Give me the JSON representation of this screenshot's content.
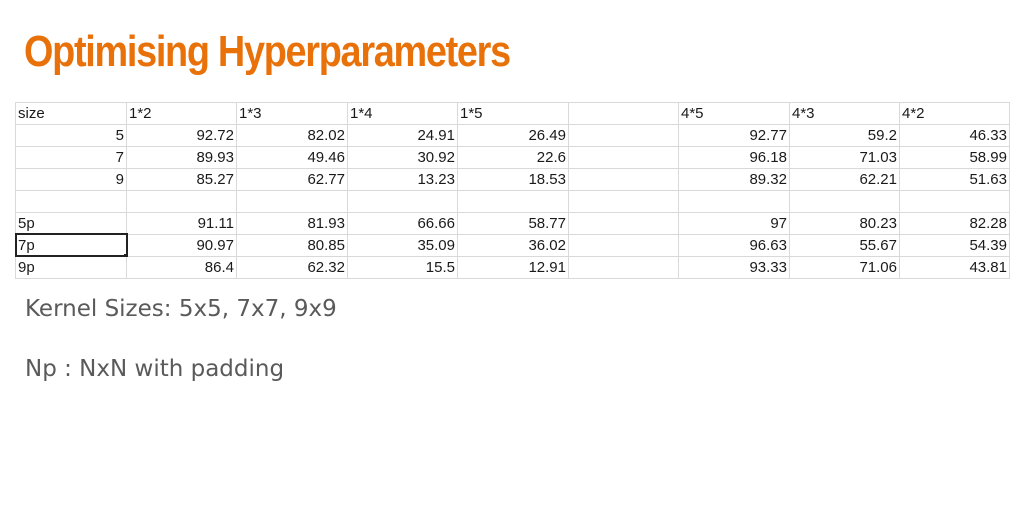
{
  "title": "Optimising Hyperparameters",
  "table": {
    "header": [
      "size",
      "1*2",
      "1*3",
      "1*4",
      "1*5",
      "",
      "4*5",
      "4*3",
      "4*2"
    ],
    "rows": [
      [
        "5",
        "92.72",
        "82.02",
        "24.91",
        "26.49",
        "",
        "92.77",
        "59.2",
        "46.33"
      ],
      [
        "7",
        "89.93",
        "49.46",
        "30.92",
        "22.6",
        "",
        "96.18",
        "71.03",
        "58.99"
      ],
      [
        "9",
        "85.27",
        "62.77",
        "13.23",
        "18.53",
        "",
        "89.32",
        "62.21",
        "51.63"
      ],
      [
        "",
        "",
        "",
        "",
        "",
        "",
        "",
        "",
        ""
      ],
      [
        "5p",
        "91.11",
        "81.93",
        "66.66",
        "58.77",
        "",
        "97",
        "80.23",
        "82.28"
      ],
      [
        "7p",
        "90.97",
        "80.85",
        "35.09",
        "36.02",
        "",
        "96.63",
        "55.67",
        "54.39"
      ],
      [
        "9p",
        "86.4",
        "62.32",
        "15.5",
        "12.91",
        "",
        "93.33",
        "71.06",
        "43.81"
      ]
    ],
    "selected_cell": "7p"
  },
  "notes": [
    "Kernel Sizes: 5x5, 7x7, 9x9",
    "Np : NxN with padding"
  ]
}
